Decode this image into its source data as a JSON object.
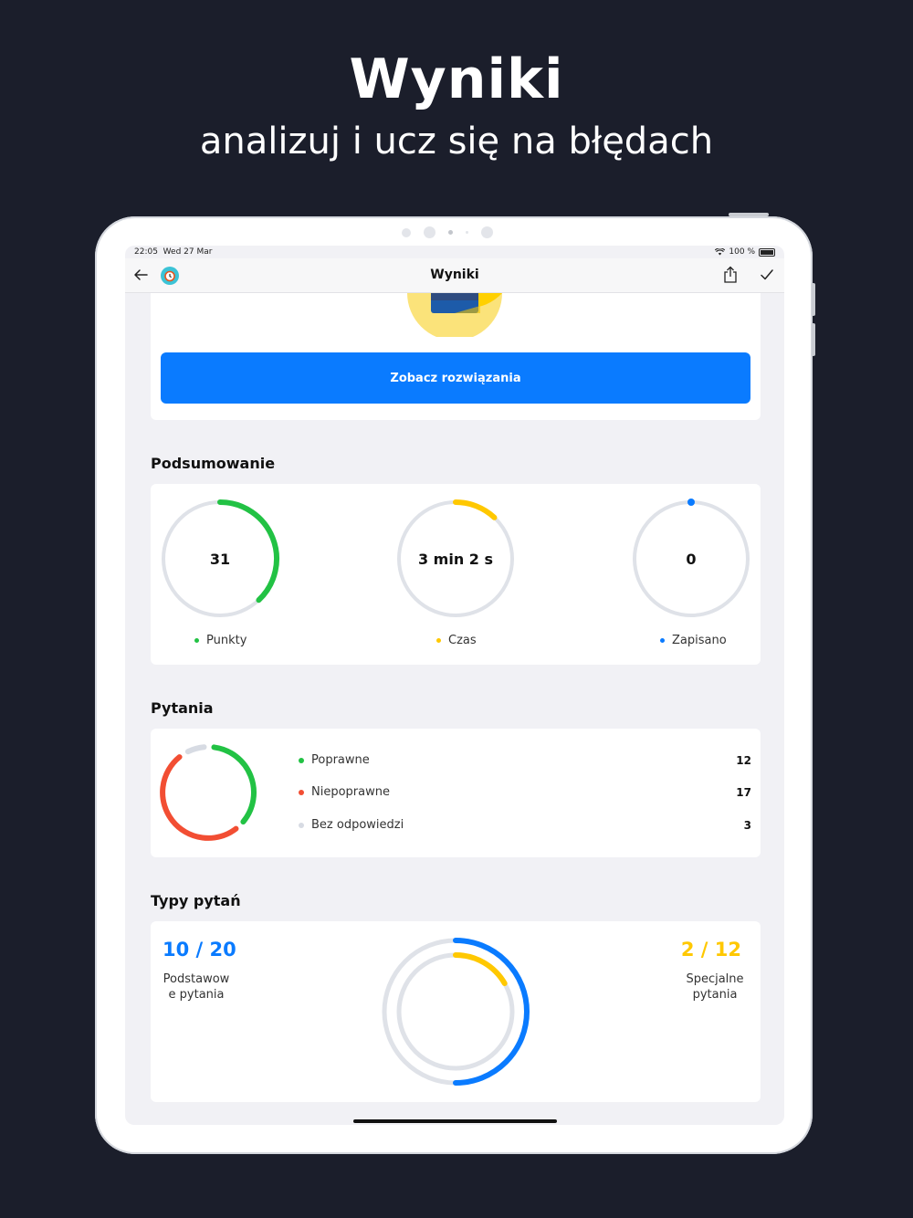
{
  "hero": {
    "title": "Wyniki",
    "subtitle": "analizuj i ucz się na błędach"
  },
  "status_bar": {
    "time": "22:05",
    "date": "Wed 27 Mar",
    "battery": "100 %"
  },
  "nav": {
    "title": "Wyniki",
    "back_icon": "back-arrow-icon",
    "timer_icon": "alarm-clock-icon",
    "share_icon": "share-icon",
    "done_icon": "checkmark-icon"
  },
  "cta": {
    "label": "Zobacz rozwiązania"
  },
  "summary": {
    "title": "Podsumowanie",
    "items": [
      {
        "value": "31",
        "label": "Punkty",
        "color": "#22c244",
        "fraction": 0.38
      },
      {
        "value": "3 min 2 s",
        "label": "Czas",
        "color": "#ffc800",
        "fraction": 0.12
      },
      {
        "value": "0",
        "label": "Zapisano",
        "color": "#0a7bff",
        "fraction": 0.0
      }
    ]
  },
  "questions": {
    "title": "Pytania",
    "items": [
      {
        "label": "Poprawne",
        "count": "12",
        "color": "#22c244"
      },
      {
        "label": "Niepoprawne",
        "count": "17",
        "color": "#f24e33"
      },
      {
        "label": "Bez odpowiedzi",
        "count": "3",
        "color": "#d7dbe3"
      }
    ]
  },
  "types": {
    "title": "Typy pytań",
    "basic": {
      "score": "10 / 20",
      "label_line1": "Podstawow",
      "label_line2": "e pytania",
      "color": "#0a7bff",
      "fraction": 0.5
    },
    "special": {
      "score": "2 / 12",
      "label_line1": "Specjalne",
      "label_line2": "pytania",
      "color": "#ffc800",
      "fraction": 0.1667
    }
  }
}
